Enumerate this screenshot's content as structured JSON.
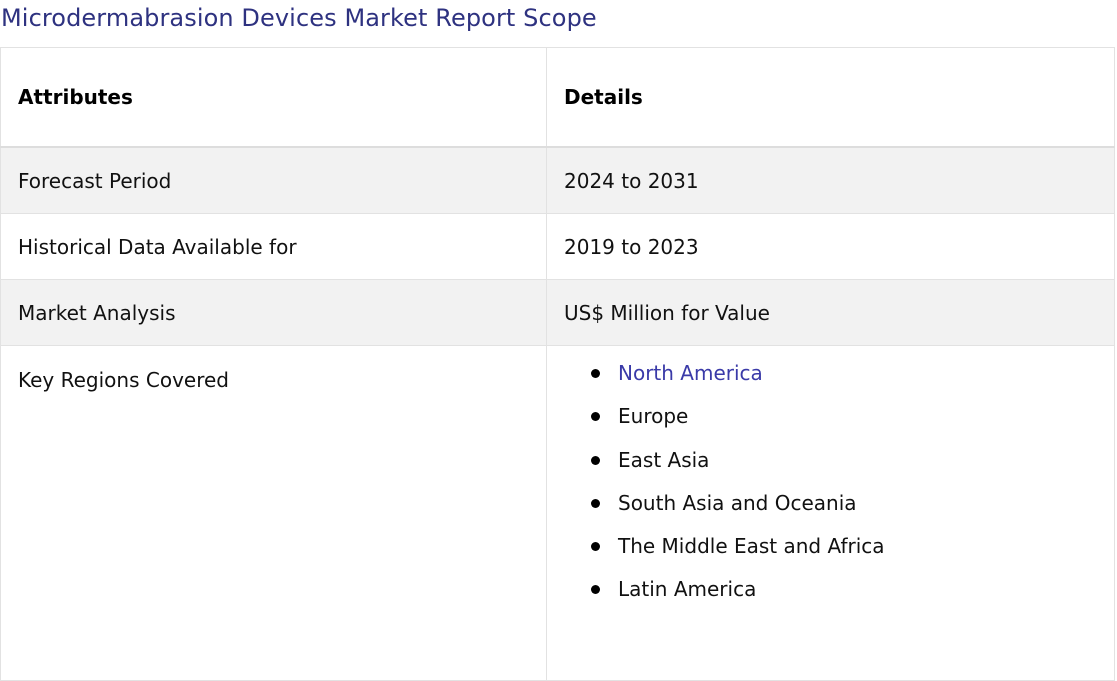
{
  "title": "Microdermabrasion Devices Market Report Scope",
  "table": {
    "headers": [
      "Attributes",
      "Details"
    ],
    "rows": [
      {
        "attribute": "Forecast Period",
        "detail": "2024 to 2031"
      },
      {
        "attribute": "Historical Data Available for",
        "detail": "2019 to 2023"
      },
      {
        "attribute": "Market Analysis",
        "detail": "US$ Million for Value"
      }
    ],
    "regions_label": "Key Regions Covered",
    "regions": [
      "North America",
      "Europe",
      "East Asia",
      "South Asia and Oceania",
      "The Middle East and Africa",
      "Latin America"
    ]
  },
  "colors": {
    "title": "#2e3280",
    "link": "#3a3aa8",
    "row_alt": "#f2f2f2",
    "border": "#e2e2e2"
  }
}
